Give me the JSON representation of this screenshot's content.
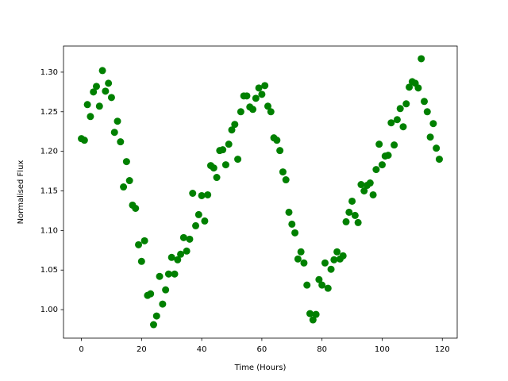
{
  "chart_data": {
    "type": "scatter",
    "xlabel": "Time (Hours)",
    "ylabel": "Normalised Flux",
    "color": "#008000",
    "x": [
      0,
      1,
      2,
      3,
      4,
      5,
      6,
      7,
      8,
      9,
      10,
      11,
      12,
      13,
      14,
      15,
      16,
      17,
      18,
      19,
      20,
      21,
      22,
      23,
      24,
      25,
      26,
      27,
      28,
      29,
      30,
      31,
      32,
      33,
      34,
      35,
      36,
      37,
      38,
      39,
      40,
      41,
      42,
      43,
      44,
      45,
      46,
      47,
      48,
      49,
      50,
      51,
      52,
      53,
      54,
      55,
      56,
      57,
      58,
      59,
      60,
      61,
      62,
      63,
      64,
      65,
      66,
      67,
      68,
      69,
      70,
      71,
      72,
      73,
      74,
      75,
      76,
      77,
      78,
      79,
      80,
      81,
      82,
      83,
      84,
      85,
      86,
      87,
      88,
      89,
      90,
      91,
      92,
      93,
      94,
      95,
      96,
      97,
      98,
      99,
      100,
      101,
      102,
      103,
      104,
      105,
      106,
      107,
      108,
      109,
      110,
      111,
      112,
      113,
      114,
      115,
      116,
      117,
      118,
      119
    ],
    "values": [
      1.216,
      1.214,
      1.259,
      1.244,
      1.275,
      1.282,
      1.257,
      1.302,
      1.276,
      1.286,
      1.268,
      1.224,
      1.238,
      1.212,
      1.155,
      1.187,
      1.163,
      1.132,
      1.128,
      1.082,
      1.061,
      1.087,
      1.018,
      1.02,
      0.981,
      0.992,
      1.042,
      1.007,
      1.025,
      1.045,
      1.066,
      1.045,
      1.063,
      1.07,
      1.091,
      1.074,
      1.089,
      1.147,
      1.106,
      1.12,
      1.144,
      1.112,
      1.145,
      1.182,
      1.179,
      1.167,
      1.201,
      1.202,
      1.183,
      1.209,
      1.227,
      1.234,
      1.19,
      1.25,
      1.27,
      1.27,
      1.256,
      1.253,
      1.267,
      1.28,
      1.272,
      1.283,
      1.257,
      1.25,
      1.217,
      1.214,
      1.201,
      1.174,
      1.164,
      1.123,
      1.108,
      1.097,
      1.064,
      1.073,
      1.059,
      1.031,
      0.995,
      0.987,
      0.994,
      1.038,
      1.031,
      1.059,
      1.027,
      1.051,
      1.063,
      1.073,
      1.064,
      1.068,
      1.111,
      1.123,
      1.137,
      1.119,
      1.11,
      1.158,
      1.15,
      1.157,
      1.16,
      1.145,
      1.177,
      1.209,
      1.183,
      1.194,
      1.195,
      1.236,
      1.208,
      1.24,
      1.254,
      1.231,
      1.26,
      1.281,
      1.288,
      1.286,
      1.28,
      1.317,
      1.263,
      1.25,
      1.218,
      1.235,
      1.204,
      1.19
    ],
    "xlim": [
      -5.95,
      124.95
    ],
    "xticks": [
      0,
      20,
      40,
      60,
      80,
      100,
      120
    ],
    "ylim": [
      0.964,
      1.333
    ],
    "yticks": [
      {
        "value": 1.0,
        "label": "1.00"
      },
      1.05,
      {
        "value": 1.1,
        "label": "1.10"
      },
      1.15,
      {
        "value": 1.2,
        "label": "1.20"
      },
      1.25,
      {
        "value": 1.3,
        "label": "1.30"
      }
    ],
    "grid": false
  }
}
